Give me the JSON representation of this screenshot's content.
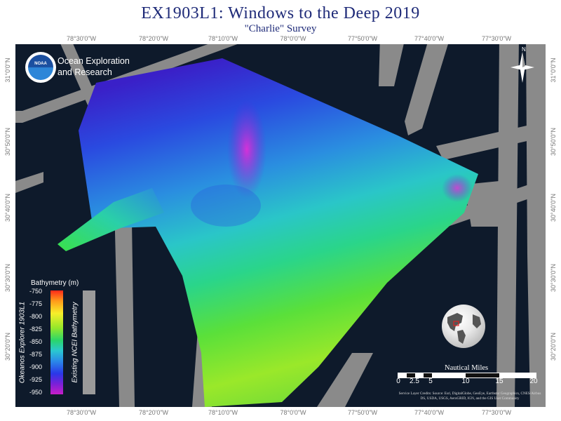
{
  "title": "EX1903L1: Windows to the Deep 2019",
  "subtitle": "\"Charlie\" Survey",
  "organization": {
    "line1": "Ocean Exploration",
    "line2": "and Research",
    "logo_text": "NOAA"
  },
  "north_label": "N",
  "top_ticks": [
    "78°30'0\"W",
    "78°20'0\"W",
    "78°10'0\"W",
    "78°0'0\"W",
    "77°50'0\"W",
    "77°40'0\"W",
    "77°30'0\"W"
  ],
  "bottom_ticks": [
    "78°30'0\"W",
    "78°20'0\"W",
    "78°10'0\"W",
    "78°0'0\"W",
    "77°50'0\"W",
    "77°40'0\"W",
    "77°30'0\"W"
  ],
  "left_ticks": [
    "31°0'0\"N",
    "30°50'0\"N",
    "30°40'0\"N",
    "30°30'0\"N",
    "30°20'0\"N"
  ],
  "right_ticks": [
    "31°0'0\"N",
    "30°50'0\"N",
    "30°40'0\"N",
    "30°30'0\"N",
    "30°20'0\"N"
  ],
  "legend": {
    "title": "Bathymetry (m)",
    "ticks": [
      "-750",
      "-775",
      "-800",
      "-825",
      "-850",
      "-875",
      "-900",
      "-925",
      "-950"
    ],
    "label_color": "Okeanos Explorer 1903L1",
    "label_grey": "Existing NCEI Bathymetry"
  },
  "scale": {
    "title": "Nautical Miles",
    "labels": [
      "0",
      "2.5",
      "5",
      "10",
      "15",
      "20"
    ]
  },
  "credits": "Service Layer Credits: Source: Esri, DigitalGlobe, GeoEye, Earthstar Geographics, CNES/Airbus DS, USDA, USGS, AeroGRID, IGN, and the GIS User Community",
  "colors": {
    "title": "#1e2a78",
    "ocean": "#0e1a2b",
    "existing_bathy": "#8a8a8a"
  }
}
